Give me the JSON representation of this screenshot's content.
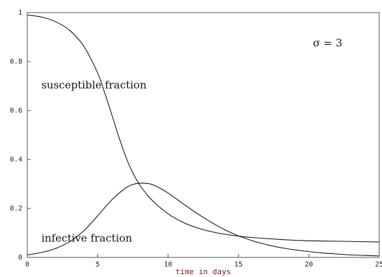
{
  "chart_data": {
    "type": "line",
    "title": "",
    "xlabel": "time in days",
    "ylabel": "",
    "xlim": [
      0,
      25
    ],
    "ylim": [
      0,
      1
    ],
    "x_ticks": [
      0,
      5,
      10,
      15,
      20,
      25
    ],
    "x_tick_labels": [
      "0",
      "5",
      "10",
      "15",
      "20",
      "25"
    ],
    "y_ticks": [
      0,
      0.2,
      0.4,
      0.6,
      0.8,
      1
    ],
    "y_tick_labels": [
      "0",
      "0.2",
      "0.4",
      "0.6",
      "0.8",
      "1"
    ],
    "grid": false,
    "annotations": [
      {
        "text": "σ = 3",
        "x": 20.3,
        "y": 0.862
      },
      {
        "text": "susceptible fraction",
        "x": 1,
        "y": 0.69
      },
      {
        "text": "infective fraction",
        "x": 1,
        "y": 0.065
      }
    ],
    "series": [
      {
        "x": [
          0,
          1,
          2,
          3,
          4,
          5,
          5.5,
          6,
          6.5,
          7,
          7.5,
          8,
          8.5,
          9,
          10,
          11,
          12,
          13,
          14,
          15,
          16,
          17,
          18,
          19,
          20,
          21,
          22,
          23,
          24,
          25
        ],
        "values": [
          0.99,
          0.982,
          0.963,
          0.928,
          0.864,
          0.753,
          0.672,
          0.584,
          0.493,
          0.411,
          0.345,
          0.295,
          0.257,
          0.226,
          0.178,
          0.145,
          0.122,
          0.106,
          0.095,
          0.087,
          0.081,
          0.077,
          0.073,
          0.07,
          0.068,
          0.067,
          0.066,
          0.065,
          0.064,
          0.063
        ]
      },
      {
        "x": [
          0,
          1,
          2,
          3,
          4,
          5,
          6,
          7,
          7.5,
          8,
          8.5,
          9,
          10,
          11,
          12,
          13,
          14,
          15,
          16,
          17,
          18,
          19,
          20,
          21,
          22,
          23,
          24,
          25
        ],
        "values": [
          0.01,
          0.02,
          0.036,
          0.064,
          0.108,
          0.17,
          0.235,
          0.284,
          0.298,
          0.303,
          0.302,
          0.295,
          0.263,
          0.222,
          0.182,
          0.146,
          0.114,
          0.088,
          0.068,
          0.052,
          0.04,
          0.031,
          0.024,
          0.018,
          0.014,
          0.01,
          0.008,
          0.006
        ]
      }
    ]
  }
}
